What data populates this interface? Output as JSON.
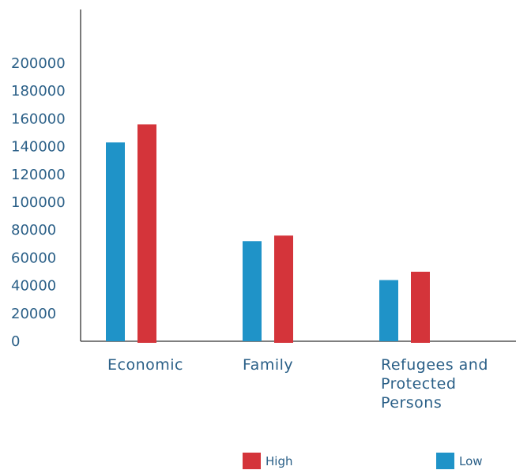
{
  "chart_data": {
    "type": "bar",
    "categories": [
      "Economic",
      "Family",
      "Refugees and Protected Persons"
    ],
    "category_label_lines": [
      [
        "Economic"
      ],
      [
        "Family"
      ],
      [
        "Refugees and",
        "Protected",
        "Persons"
      ]
    ],
    "y_ticks": [
      "0",
      "20000",
      "40000",
      "60000",
      "80000",
      "100000",
      "120000",
      "140000",
      "160000",
      "180000",
      "200000"
    ],
    "ylim": [
      0,
      220000
    ],
    "series": [
      {
        "name": "Low",
        "color": "#1f93c8",
        "values": [
          143000,
          72000,
          44000
        ]
      },
      {
        "name": "High",
        "color": "#d4343a",
        "values": [
          156000,
          76000,
          50000
        ]
      }
    ],
    "legend": [
      {
        "name": "High",
        "color": "#d4343a"
      },
      {
        "name": "Low",
        "color": "#1f93c8"
      }
    ],
    "legend_position": "bottom",
    "grid": false,
    "title": "",
    "xlabel": "",
    "ylabel": ""
  }
}
